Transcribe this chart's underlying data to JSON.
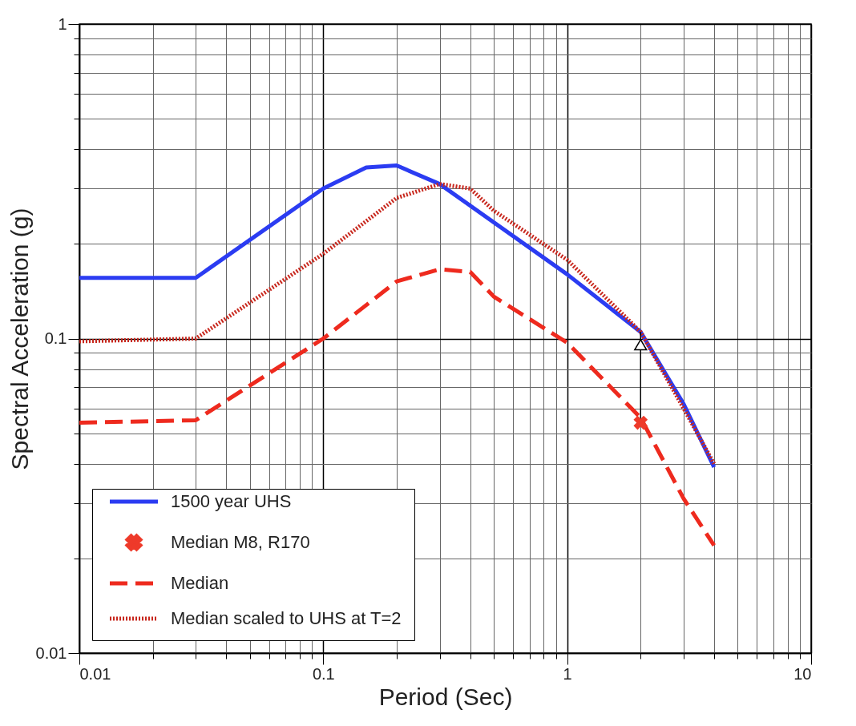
{
  "chart_data": {
    "type": "line",
    "xlabel": "Period (Sec)",
    "ylabel": "Spectral Acceleration (g)",
    "log": "xy",
    "grid": true,
    "legend": "bottom left",
    "xlim": [
      0.01,
      10
    ],
    "ylim": [
      0.01,
      1
    ],
    "xticks": [
      0.01,
      {
        "value": 0.02,
        "label": null
      },
      {
        "value": 0.03,
        "label": null
      },
      {
        "value": 0.04,
        "label": null
      },
      {
        "value": 0.05,
        "label": null
      },
      {
        "value": 0.06,
        "label": null
      },
      {
        "value": 0.07,
        "label": null
      },
      {
        "value": 0.08,
        "label": null
      },
      {
        "value": 0.09,
        "label": null
      },
      0.1,
      {
        "value": 0.2,
        "label": null
      },
      {
        "value": 0.3,
        "label": null
      },
      {
        "value": 0.4,
        "label": null
      },
      {
        "value": 0.5,
        "label": null
      },
      {
        "value": 0.6,
        "label": null
      },
      {
        "value": 0.7,
        "label": null
      },
      {
        "value": 0.8,
        "label": null
      },
      {
        "value": 0.9,
        "label": null
      },
      1,
      {
        "value": 2,
        "label": null
      },
      {
        "value": 3,
        "label": null
      },
      {
        "value": 4,
        "label": null
      },
      {
        "value": 5,
        "label": null
      },
      {
        "value": 6,
        "label": null
      },
      {
        "value": 7,
        "label": null
      },
      {
        "value": 8,
        "label": null
      },
      {
        "value": 9,
        "label": null
      },
      10
    ],
    "yticks": [
      0.01,
      {
        "value": 0.02,
        "label": null
      },
      {
        "value": 0.03,
        "label": null
      },
      {
        "value": 0.04,
        "label": null
      },
      {
        "value": 0.05,
        "label": null
      },
      {
        "value": 0.06,
        "label": null
      },
      {
        "value": 0.07,
        "label": null
      },
      {
        "value": 0.08,
        "label": null
      },
      {
        "value": 0.09,
        "label": null
      },
      0.1,
      {
        "value": 0.2,
        "label": null
      },
      {
        "value": 0.3,
        "label": null
      },
      {
        "value": 0.4,
        "label": null
      },
      {
        "value": 0.5,
        "label": null
      },
      {
        "value": 0.6,
        "label": null
      },
      {
        "value": 0.7,
        "label": null
      },
      {
        "value": 0.8,
        "label": null
      },
      {
        "value": 0.9,
        "label": null
      },
      1
    ],
    "series": [
      {
        "name": "1500 year UHS",
        "line_style": "solid",
        "color": "#2b3cf2",
        "x": [
          0.01,
          0.03,
          0.1,
          0.15,
          0.2,
          0.3,
          1,
          2,
          3,
          4
        ],
        "values": [
          0.156,
          0.156,
          0.3,
          0.35,
          0.355,
          0.31,
          0.16,
          0.105,
          0.062,
          0.039
        ]
      },
      {
        "name": "Median M8, R170",
        "type": "scatter",
        "marker": "cross",
        "color": "#ee3a2a",
        "x": [
          2
        ],
        "values": [
          0.054
        ]
      },
      {
        "name": "Median",
        "line_style": "dashed",
        "color": "#ee2a1e",
        "x": [
          0.01,
          0.03,
          0.1,
          0.2,
          0.3,
          0.4,
          0.5,
          1,
          2,
          3,
          4
        ],
        "values": [
          0.054,
          0.055,
          0.1,
          0.152,
          0.166,
          0.163,
          0.136,
          0.097,
          0.056,
          0.031,
          0.022
        ]
      },
      {
        "name": "Median scaled to UHS at T=2",
        "line_style": "dotted",
        "color": "#c8281e",
        "x": [
          0.01,
          0.03,
          0.1,
          0.2,
          0.3,
          0.4,
          0.5,
          1,
          2,
          3,
          4
        ],
        "values": [
          0.098,
          0.1,
          0.186,
          0.28,
          0.31,
          0.3,
          0.255,
          0.178,
          0.105,
          0.06,
          0.04
        ]
      }
    ]
  }
}
